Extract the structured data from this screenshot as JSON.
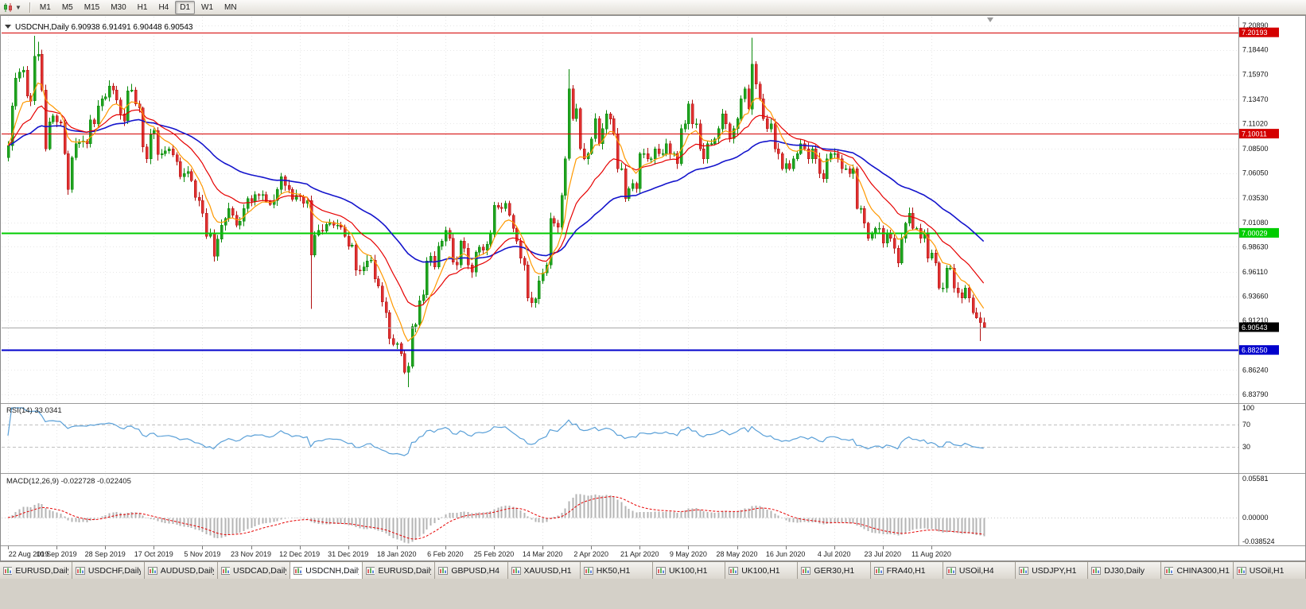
{
  "toolbar": {
    "timeframes": [
      "M1",
      "M5",
      "M15",
      "M30",
      "H1",
      "H4",
      "D1",
      "W1",
      "MN"
    ],
    "active_timeframe": "D1",
    "chart_type_icon": "candlestick-chart",
    "dropdown_icon": "chevron-down"
  },
  "chart": {
    "symbol_period": "USDCNH,Daily",
    "last_quote": {
      "open": "6.90938",
      "high": "6.91491",
      "low": "6.90448",
      "close": "6.90543"
    },
    "h_lines": [
      {
        "price": "7.20193",
        "color": "#d40000",
        "width": 1
      },
      {
        "price": "7.10011",
        "color": "#d40000",
        "width": 1
      },
      {
        "price": "7.00029",
        "color": "#00cc00",
        "width": 2
      },
      {
        "price": "6.88250",
        "color": "#0000cc",
        "width": 2
      }
    ],
    "moving_averages": [
      {
        "period": 50,
        "color": "#1414cc",
        "width": 1.6,
        "name": "slow-ma"
      },
      {
        "period": 20,
        "color": "#e60000",
        "width": 1.2,
        "name": "mid-ma"
      },
      {
        "period": 8,
        "color": "#ff9900",
        "width": 1.2,
        "name": "fast-ma"
      }
    ]
  },
  "indicators": {
    "rsi": {
      "label": "RSI(14)",
      "value": "33.0341",
      "levels": [
        70,
        30
      ],
      "scale_labels": [
        "100",
        "70",
        "30"
      ],
      "scale_values": [
        100,
        70,
        30
      ],
      "color": "#5aa0d8"
    },
    "macd": {
      "label": "MACD(12,26,9)",
      "value_macd": "-0.022728",
      "value_signal": "-0.022405",
      "scale_labels": [
        "0.05581",
        "0.00000",
        "-0.038524"
      ],
      "scale_values": [
        0.05581,
        0,
        -0.038524
      ]
    }
  },
  "colors": {
    "up": "#1fa31f",
    "up_stroke": "#0a8a0a",
    "down": "#e03030",
    "down_stroke": "#b01010",
    "grid": "#e7e7e7",
    "frame": "#8a8a8a",
    "bid_line": "#a8a8a8",
    "bid_badge": "#000000",
    "macd_hist": "#b4b4b4",
    "macd_signal": "#e60000"
  },
  "chart_data": {
    "type": "candlestick",
    "symbol": "USDCNH",
    "timeframe": "Daily",
    "ylim": [
      6.8379,
      7.2089
    ],
    "y_ticks": [
      "7.20890",
      "7.18440",
      "7.15970",
      "7.13470",
      "7.11020",
      "7.08500",
      "7.06050",
      "7.03530",
      "7.01080",
      "6.98630",
      "6.96110",
      "6.93660",
      "6.91210",
      "6.86240",
      "6.83790"
    ],
    "x_labels": [
      "22 Aug 2019",
      "10 Sep 2019",
      "28 Sep 2019",
      "17 Oct 2019",
      "5 Nov 2019",
      "23 Nov 2019",
      "12 Dec 2019",
      "31 Dec 2019",
      "18 Jan 2020",
      "6 Feb 2020",
      "25 Feb 2020",
      "14 Mar 2020",
      "2 Apr 2020",
      "21 Apr 2020",
      "9 May 2020",
      "28 May 2020",
      "16 Jun 2020",
      "4 Jul 2020",
      "23 Jul 2020",
      "11 Aug 2020"
    ],
    "closes": [
      7.088,
      7.128,
      7.156,
      7.162,
      7.164,
      7.138,
      7.133,
      7.178,
      7.18,
      7.144,
      7.085,
      7.112,
      7.118,
      7.112,
      7.111,
      7.08,
      7.044,
      7.076,
      7.09,
      7.092,
      7.093,
      7.09,
      7.114,
      7.11,
      7.128,
      7.135,
      7.137,
      7.148,
      7.144,
      7.134,
      7.12,
      7.113,
      7.143,
      7.144,
      7.13,
      7.126,
      7.087,
      7.075,
      7.1,
      7.103,
      7.079,
      7.08,
      7.083,
      7.085,
      7.079,
      7.072,
      7.057,
      7.06,
      7.062,
      7.053,
      7.036,
      7.033,
      7.02,
      6.997,
      7.0,
      6.977,
      6.994,
      7.008,
      7.015,
      7.025,
      7.018,
      7.008,
      7.012,
      7.025,
      7.035,
      7.032,
      7.039,
      7.038,
      7.039,
      7.032,
      7.029,
      7.033,
      7.044,
      7.057,
      7.048,
      7.044,
      7.034,
      7.038,
      7.037,
      7.03,
      7.033,
      6.978,
      6.998,
      7.003,
      7.002,
      7.009,
      7.011,
      7.008,
      7.008,
      7.006,
      6.997,
      6.987,
      6.988,
      6.963,
      6.962,
      6.966,
      6.972,
      6.973,
      6.954,
      6.947,
      6.931,
      6.92,
      6.894,
      6.888,
      6.889,
      6.879,
      6.86,
      6.866,
      6.906,
      6.908,
      6.932,
      6.938,
      6.972,
      6.977,
      6.966,
      6.987,
      6.992,
      7.003,
      6.995,
      6.971,
      6.968,
      6.992,
      6.985,
      6.968,
      6.961,
      6.981,
      6.986,
      6.983,
      6.989,
      6.999,
      7.028,
      7.026,
      7.025,
      7.03,
      7.018,
      7.005,
      6.992,
      6.975,
      6.968,
      6.935,
      6.93,
      6.934,
      6.952,
      6.96,
      6.968,
      7.015,
      7.01,
      7.006,
      7.038,
      7.075,
      7.145,
      7.115,
      7.125,
      7.085,
      7.075,
      7.08,
      7.095,
      7.115,
      7.09,
      7.105,
      7.12,
      7.115,
      7.1,
      7.065,
      7.065,
      7.035,
      7.045,
      7.05,
      7.045,
      7.08,
      7.08,
      7.075,
      7.075,
      7.085,
      7.08,
      7.08,
      7.09,
      7.08,
      7.08,
      7.07,
      7.105,
      7.11,
      7.13,
      7.11,
      7.11,
      7.085,
      7.075,
      7.09,
      7.09,
      7.095,
      7.105,
      7.12,
      7.11,
      7.095,
      7.105,
      7.115,
      7.135,
      7.145,
      7.125,
      7.17,
      7.15,
      7.135,
      7.115,
      7.105,
      7.11,
      7.085,
      7.08,
      7.065,
      7.07,
      7.065,
      7.075,
      7.08,
      7.09,
      7.085,
      7.075,
      7.085,
      7.075,
      7.06,
      7.055,
      7.075,
      7.08,
      7.08,
      7.075,
      7.065,
      7.065,
      7.06,
      7.065,
      7.025,
      7.025,
      7.01,
      6.995,
      7.0,
      7.005,
      7.005,
      6.99,
      7.0,
      6.995,
      6.985,
      6.97,
      6.995,
      7.01,
      7.02,
      7.005,
      7.005,
      6.995,
      7.0,
      6.975,
      6.98,
      6.97,
      6.945,
      6.945,
      6.965,
      6.965,
      6.945,
      6.94,
      6.935,
      6.945,
      6.935,
      6.92,
      6.915,
      6.91,
      6.9054
    ],
    "wick_overrides": {
      "7": {
        "h": 7.1985
      },
      "8": {
        "h": 7.1925
      },
      "81": {
        "l": 6.924
      },
      "107": {
        "l": 6.8452
      },
      "150": {
        "h": 7.165
      },
      "199": {
        "h": 7.1964
      },
      "260": {
        "l": 6.8915
      },
      "261": {
        "h": 6.91491,
        "l": 6.90448
      }
    }
  },
  "tabs": {
    "labels": [
      "EURUSD,Daily",
      "USDCHF,Daily",
      "AUDUSD,Daily",
      "USDCAD,Daily",
      "USDCNH,Daily",
      "EURUSD,Daily",
      "GBPUSD,H4",
      "XAUUSD,H1",
      "HK50,H1",
      "UK100,H1",
      "UK100,H1",
      "GER30,H1",
      "FRA40,H1",
      "USOil,H4",
      "USDJPY,H1",
      "DJ30,Daily",
      "CHINA300,H1",
      "USOil,H1"
    ],
    "active_index": 4
  }
}
